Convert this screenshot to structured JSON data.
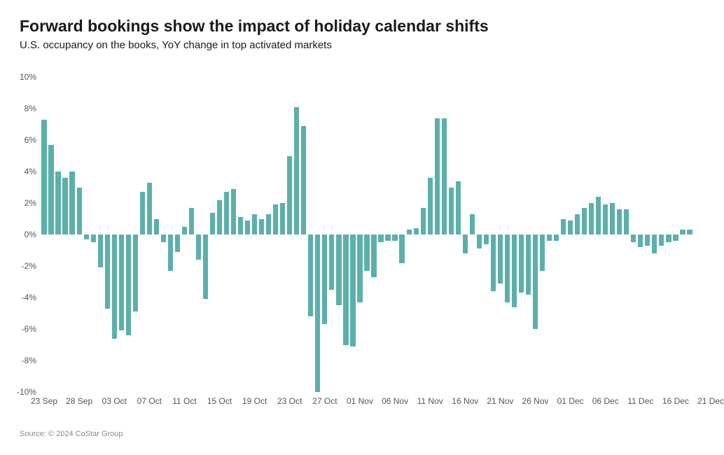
{
  "title": "Forward bookings show the impact of holiday calendar shifts",
  "title_fontsize": 23,
  "subtitle": "U.S. occupancy on the books, YoY change in top activated markets",
  "subtitle_fontsize": 15,
  "source": "Source: © 2024 CoStar Group",
  "chart": {
    "type": "bar",
    "ylim": [
      -10,
      10
    ],
    "ytick_step": 2,
    "ytick_suffix": "%",
    "bar_color": "#5bb0ab",
    "background_color": "#ffffff",
    "axis_text_color": "#555555",
    "bar_width_ratio": 0.72,
    "x_labels": [
      "23 Sep",
      "28 Sep",
      "03 Oct",
      "07 Oct",
      "11 Oct",
      "15 Oct",
      "19 Oct",
      "23 Oct",
      "27 Oct",
      "01 Nov",
      "06 Nov",
      "11 Nov",
      "16 Nov",
      "21 Nov",
      "26 Nov",
      "01 Dec",
      "06 Dec",
      "11 Dec",
      "16 Dec",
      "21 Dec"
    ],
    "x_label_every": 5,
    "values": [
      7.3,
      5.7,
      4.0,
      3.6,
      4.0,
      3.0,
      -0.3,
      -0.5,
      -2.1,
      -4.7,
      -6.6,
      -6.1,
      -6.4,
      -4.9,
      2.7,
      3.3,
      1.0,
      -0.5,
      -2.3,
      -1.1,
      0.5,
      1.7,
      -1.6,
      -4.1,
      1.4,
      2.2,
      2.7,
      2.9,
      1.1,
      0.9,
      1.3,
      1.0,
      1.3,
      1.9,
      2.0,
      5.0,
      8.1,
      6.9,
      -5.2,
      -10.0,
      -5.7,
      -3.5,
      -4.5,
      -7.0,
      -7.1,
      -4.3,
      -2.3,
      -2.7,
      -0.5,
      -0.4,
      -0.4,
      -1.8,
      0.3,
      0.4,
      1.7,
      3.6,
      7.4,
      7.4,
      3.0,
      3.4,
      -1.2,
      1.3,
      -0.9,
      -0.6,
      -3.6,
      -3.1,
      -4.3,
      -4.6,
      -3.7,
      -3.8,
      -6.0,
      -2.3,
      -0.4,
      -0.4,
      1.0,
      0.9,
      1.3,
      1.7,
      2.0,
      2.4,
      1.9,
      2.0,
      1.6,
      1.6,
      -0.5,
      -0.8,
      -0.7,
      -1.2,
      -0.7,
      -0.5,
      -0.4,
      0.3,
      0.3
    ]
  }
}
